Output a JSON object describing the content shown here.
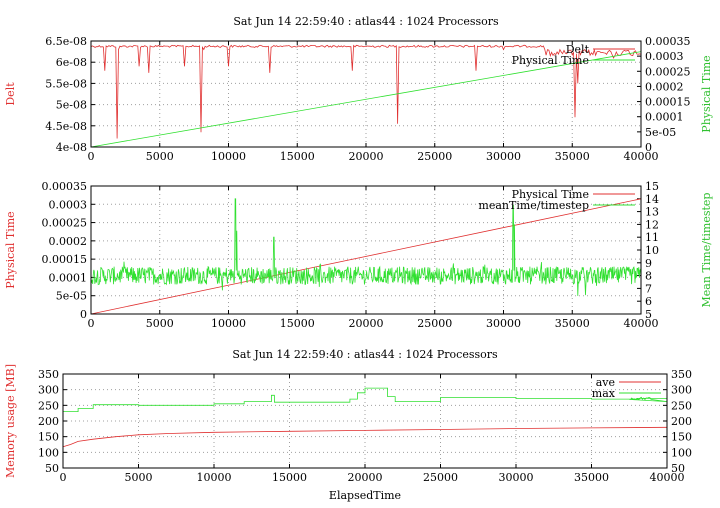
{
  "chart_data": [
    {
      "type": "line",
      "title": "Sat Jun 14 22:59:40 : atlas44 : 1024 Processors",
      "ylabel": "Delt",
      "y2label": "Physical Time",
      "xlim": [
        0,
        40000
      ],
      "ylim": [
        4e-08,
        6.5e-08
      ],
      "y2lim": [
        0,
        0.00035
      ],
      "xticks": [
        "0",
        "5000",
        "10000",
        "15000",
        "20000",
        "25000",
        "30000",
        "35000",
        "40000"
      ],
      "yticks": [
        "4e-08",
        "4.5e-08",
        "5e-08",
        "5.5e-08",
        "6e-08",
        "6.5e-08"
      ],
      "y2ticks": [
        "0",
        "5e-05",
        "0.0001",
        "0.00015",
        "0.0002",
        "0.00025",
        "0.0003",
        "0.00035"
      ],
      "grid": true,
      "legend_position": "top-right",
      "series": [
        {
          "name": "Delt",
          "axis": "y",
          "color": "#e03030",
          "x": [
            0,
            500,
            1000,
            1900,
            2000,
            3500,
            4200,
            6800,
            8000,
            8200,
            10000,
            13000,
            19000,
            22300,
            22500,
            28000,
            30000,
            33000,
            35200,
            35400,
            35600,
            36000,
            38000,
            39500
          ],
          "y": [
            6.4e-08,
            6.4e-08,
            5.8e-08,
            4.2e-08,
            6.3e-08,
            5.9e-08,
            5.75e-08,
            5.9e-08,
            4.35e-08,
            6.3e-08,
            5.9e-08,
            5.75e-08,
            5.8e-08,
            4.55e-08,
            6.35e-08,
            5.8e-08,
            6.3e-08,
            6.3e-08,
            4.7e-08,
            5.5e-08,
            6.35e-08,
            6.3e-08,
            6.1e-08,
            6.25e-08
          ],
          "baseline": 6.4e-08
        },
        {
          "name": "Physical Time",
          "axis": "y2",
          "color": "#30e030",
          "x": [
            0,
            40000
          ],
          "y": [
            0,
            0.000315
          ]
        }
      ]
    },
    {
      "type": "line",
      "title": "",
      "ylabel": "Physical Time",
      "y2label": "Mean Time/timestep",
      "xlim": [
        0,
        40000
      ],
      "ylim": [
        0,
        0.00035
      ],
      "y2lim": [
        5,
        15
      ],
      "xticks": [
        "0",
        "5000",
        "10000",
        "15000",
        "20000",
        "25000",
        "30000",
        "35000",
        "40000"
      ],
      "yticks": [
        "0",
        "5e-05",
        "0.0001",
        "0.00015",
        "0.0002",
        "0.00025",
        "0.0003",
        "0.00035"
      ],
      "y2ticks": [
        "5",
        "6",
        "7",
        "8",
        "9",
        "10",
        "11",
        "12",
        "13",
        "14",
        "15"
      ],
      "grid": true,
      "legend_position": "top-right",
      "series": [
        {
          "name": "Physical Time",
          "axis": "y",
          "color": "#e03030",
          "x": [
            0,
            40000
          ],
          "y": [
            0,
            0.000315
          ]
        },
        {
          "name": "meanTime/timestep",
          "axis": "y2",
          "color": "#30e030",
          "baseline": 8.0,
          "noise": 0.7,
          "spikes_x": [
            10500,
            10600,
            13300,
            30700,
            30800
          ],
          "spikes_y": [
            14.0,
            11.5,
            11.0,
            13.5,
            12.0
          ]
        }
      ]
    },
    {
      "type": "line",
      "title": "Sat Jun 14 22:59:40 : atlas44 : 1024 Processors",
      "xlabel": "ElapsedTime",
      "ylabel": "Memory usage [MB]",
      "xlim": [
        0,
        40000
      ],
      "ylim": [
        50,
        350
      ],
      "y2lim": [
        50,
        350
      ],
      "xticks": [
        "0",
        "5000",
        "10000",
        "15000",
        "20000",
        "25000",
        "30000",
        "35000",
        "40000"
      ],
      "yticks": [
        "50",
        "100",
        "150",
        "200",
        "250",
        "300",
        "350"
      ],
      "y2ticks": [
        "50",
        "100",
        "150",
        "200",
        "250",
        "300",
        "350"
      ],
      "grid": true,
      "legend_position": "top-right",
      "series": [
        {
          "name": "ave",
          "axis": "y",
          "color": "#e03030",
          "x": [
            0,
            500,
            1000,
            2000,
            3500,
            5000,
            7000,
            10000,
            15000,
            20000,
            25000,
            30000,
            35000,
            40000
          ],
          "y": [
            118,
            125,
            135,
            142,
            150,
            156,
            160,
            164,
            167,
            170,
            173,
            176,
            178,
            180
          ]
        },
        {
          "name": "max",
          "axis": "y",
          "color": "#30e030",
          "x": [
            0,
            1000,
            2000,
            5000,
            10000,
            12000,
            13800,
            14000,
            19000,
            19500,
            20000,
            21500,
            22000,
            25000,
            30000,
            35000,
            38000,
            40000
          ],
          "y": [
            230,
            240,
            252,
            250,
            255,
            262,
            282,
            260,
            270,
            290,
            305,
            278,
            262,
            275,
            272,
            270,
            272,
            262
          ]
        }
      ]
    }
  ]
}
